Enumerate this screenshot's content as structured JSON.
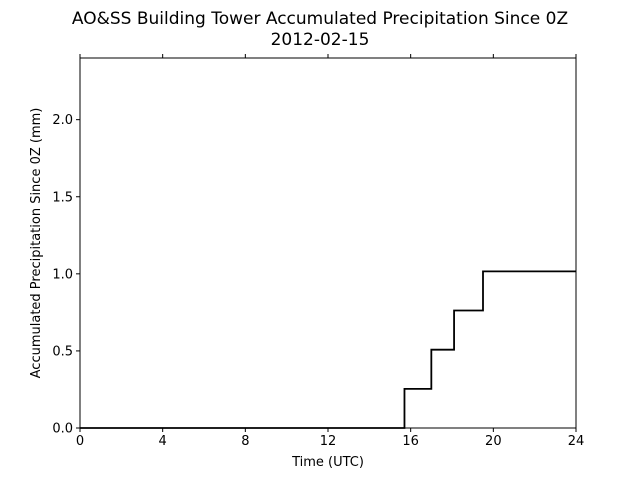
{
  "chart_data": {
    "type": "line",
    "title": "AO&SS Building Tower Accumulated Precipitation Since 0Z",
    "subtitle": "2012-02-15",
    "xlabel": "Time (UTC)",
    "ylabel": "Accumulated Precipitation Since 0Z (mm)",
    "xlim": [
      0,
      24
    ],
    "ylim": [
      0,
      2.4
    ],
    "xticks": [
      0,
      4,
      8,
      12,
      16,
      20,
      24
    ],
    "xtick_labels": [
      "0",
      "4",
      "8",
      "12",
      "16",
      "20",
      "24"
    ],
    "yticks": [
      0,
      0.5,
      1.0,
      1.5,
      2.0
    ],
    "ytick_labels": [
      "0.0",
      "0.5",
      "1.0",
      "1.5",
      "2.0"
    ],
    "grid": false,
    "line_color": "#000000",
    "series": [
      {
        "step": "post",
        "points": [
          [
            0,
            0
          ],
          [
            15.7,
            0
          ],
          [
            15.7,
            0.254
          ],
          [
            17.0,
            0.254
          ],
          [
            17.0,
            0.508
          ],
          [
            18.1,
            0.508
          ],
          [
            18.1,
            0.762
          ],
          [
            19.5,
            0.762
          ],
          [
            19.5,
            1.016
          ],
          [
            24,
            1.016
          ]
        ]
      }
    ]
  }
}
